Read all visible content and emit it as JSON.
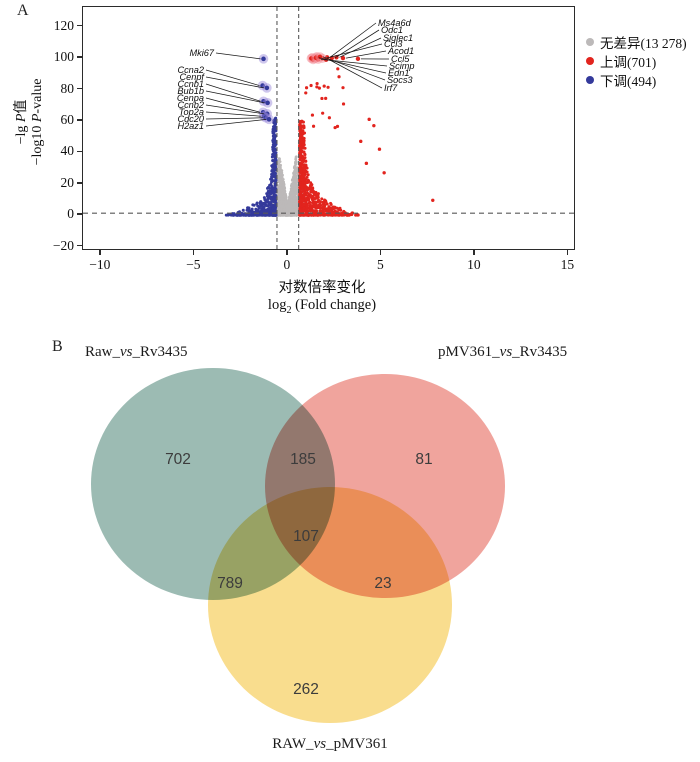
{
  "figure": {
    "panel_a_letter": "A",
    "panel_b_letter": "B"
  },
  "chart_data": [
    {
      "type": "scatter",
      "subtype": "volcano",
      "xlabel_zh": "对数倍率变化",
      "xlabel_en_parts": [
        "log",
        {
          "text": "2",
          "style": "sub"
        },
        " (Fold change)"
      ],
      "ylabel_zh_parts": [
        "−lg ",
        {
          "text": "P",
          "style": "i"
        },
        "值"
      ],
      "ylabel_en_parts": [
        "−log10 ",
        {
          "text": "P",
          "style": "i"
        },
        "-value"
      ],
      "x_axis": {
        "ticks": [
          -10,
          -5,
          0,
          5,
          10,
          15
        ],
        "range": [
          -10.95,
          15.3
        ]
      },
      "y_axis": {
        "ticks": [
          120,
          100,
          80,
          60,
          40,
          20,
          0,
          -20
        ],
        "range": [
          -21.5,
          132.5
        ]
      },
      "thresholds": {
        "vlines": [
          -0.58,
          0.58
        ],
        "hline": 1.3,
        "line_color": "#595959"
      },
      "legend": [
        {
          "label": "无差异(13 278)",
          "count": 13278,
          "color": "#bcb9b9"
        },
        {
          "label": "上调(701)",
          "count": 701,
          "color": "#e2241e"
        },
        {
          "label": "下调(494)",
          "count": 494,
          "color": "#343a9b"
        }
      ],
      "labeled_genes": {
        "down": [
          {
            "name": "Mki67",
            "x": -1.3,
            "y": 99.5
          },
          {
            "name": "Ccna2",
            "x": -1.35,
            "y": 82.5
          },
          {
            "name": "Cenpf",
            "x": -1.12,
            "y": 81.0
          },
          {
            "name": "Ccnb1",
            "x": -1.3,
            "y": 72.5
          },
          {
            "name": "Bub1b",
            "x": -1.08,
            "y": 71.5
          },
          {
            "name": "Cenpa",
            "x": -1.32,
            "y": 65.5
          },
          {
            "name": "Ccnb2",
            "x": -1.1,
            "y": 64.5
          },
          {
            "name": "Top2a",
            "x": -1.28,
            "y": 63.0
          },
          {
            "name": "Cdc20",
            "x": -1.18,
            "y": 62.0
          },
          {
            "name": "H2az1",
            "x": -1.0,
            "y": 61.0
          }
        ],
        "up": [
          {
            "name": "Ms4a6d",
            "x": 2.1,
            "y": 100.5
          },
          {
            "name": "Odc1",
            "x": 2.35,
            "y": 100.0
          },
          {
            "name": "Siglec1",
            "x": 2.6,
            "y": 100.5
          },
          {
            "name": "Ccl3",
            "x": 1.85,
            "y": 99.8
          },
          {
            "name": "Acod1",
            "x": 2.95,
            "y": 100.0
          },
          {
            "name": "Ccl5",
            "x": 3.75,
            "y": 99.5
          },
          {
            "name": "Scimp",
            "x": 1.62,
            "y": 99.2
          },
          {
            "name": "Edn1",
            "x": 1.5,
            "y": 100.2
          },
          {
            "name": "Socs3",
            "x": 1.72,
            "y": 100.8
          },
          {
            "name": "Irf7",
            "x": 2.05,
            "y": 99.0
          }
        ]
      },
      "points_render": {
        "seed": 12,
        "gray": {
          "color": "#bcb9b9",
          "n": 2400,
          "band_frac": 0.3,
          "band_xmax": 2.35,
          "spike_peak_y": 38,
          "spike_peak_x": 0.45
        },
        "down": {
          "color": "#343a9b",
          "n": 494,
          "ymax": 62,
          "exp": 3.2,
          "x0": 0.63,
          "xlim": 4.05
        },
        "up": {
          "color": "#e2241e",
          "n": 701,
          "ymax": 60,
          "exp": 2.6,
          "x0": 0.63,
          "high": {
            "n": 20,
            "x": [
              0.9,
              3.2
            ],
            "y": [
              52,
              95
            ]
          },
          "outliers": [
            [
              7.75,
              9.5
            ],
            [
              4.6,
              57
            ],
            [
              4.35,
              61
            ],
            [
              4.9,
              42
            ],
            [
              5.15,
              27
            ],
            [
              3.9,
              47
            ],
            [
              4.2,
              33
            ]
          ],
          "top_blob": [
            [
              1.3,
              100.3
            ],
            [
              1.42,
              99.6
            ],
            [
              1.55,
              100.9
            ],
            [
              1.35,
              99.0
            ],
            [
              1.25,
              99.8
            ]
          ]
        },
        "halo_down": "rgba(148,130,214,0.45)",
        "halo_up": "rgba(243,140,150,0.50)"
      }
    },
    {
      "type": "venn3",
      "sets": [
        {
          "label": "Raw_vs_Rv3435",
          "label_parts": [
            "Raw_",
            {
              "text": "vs",
              "style": "i"
            },
            "_Rv3435"
          ],
          "fill": "#9cbbb3"
        },
        {
          "label": "pMV361_vs_Rv3435",
          "label_parts": [
            "pMV361_",
            {
              "text": "vs",
              "style": "i"
            },
            "_Rv3435"
          ],
          "fill": "#f0a49d"
        },
        {
          "label": "RAW_vs_pMV361",
          "label_parts": [
            "RAW_",
            {
              "text": "vs",
              "style": "i"
            },
            "_pMV361"
          ],
          "fill": "#f9dd8e"
        }
      ],
      "regions": {
        "A_only": 702,
        "AB": 185,
        "B_only": 81,
        "ABC": 107,
        "AC": 789,
        "BC": 23,
        "C_only": 262
      }
    }
  ]
}
